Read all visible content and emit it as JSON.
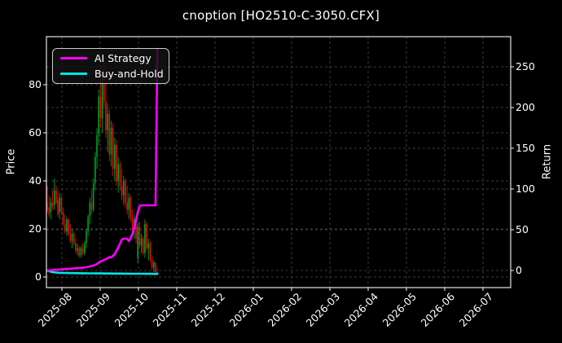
{
  "title": "cnoption [HO2510-C-3050.CFX]",
  "colors": {
    "background": "#000000",
    "foreground": "#ffffff",
    "grid": "#3a3a3a",
    "spine": "#e6e6e6",
    "candle_up": "#00a51e",
    "candle_down": "#e01212",
    "ai_line": "#ff00ff",
    "bh_line": "#00e5e5"
  },
  "legend": {
    "items": [
      {
        "label": "AI Strategy",
        "color": "#ff00ff"
      },
      {
        "label": "Buy-and-Hold",
        "color": "#00e5e5"
      }
    ]
  },
  "chart_data": {
    "type": "candlestick+line",
    "title": "cnoption [HO2510-C-3050.CFX]",
    "grid": true,
    "legend_position": "upper-left",
    "x_ticks": [
      "2025-08",
      "2025-09",
      "2025-10",
      "2025-11",
      "2025-12",
      "2026-01",
      "2026-02",
      "2026-03",
      "2026-04",
      "2026-05",
      "2026-06",
      "2026-07"
    ],
    "left_axis": {
      "label": "Price",
      "ticks": [
        0,
        20,
        40,
        60,
        80
      ],
      "range": [
        -4.5,
        100
      ]
    },
    "right_axis": {
      "label": "Return",
      "ticks": [
        0,
        50,
        100,
        150,
        200,
        250
      ],
      "range": [
        -21,
        287
      ]
    },
    "candles_ohlc": [
      [
        31,
        38,
        27,
        28
      ],
      [
        29,
        34,
        25,
        26
      ],
      [
        27,
        33,
        24,
        31
      ],
      [
        31,
        36,
        28,
        29
      ],
      [
        30,
        41,
        28,
        36
      ],
      [
        36,
        38,
        30,
        31
      ],
      [
        32,
        36,
        25,
        26
      ],
      [
        27,
        35,
        24,
        33
      ],
      [
        33,
        34,
        26,
        27
      ],
      [
        27,
        29,
        21,
        22
      ],
      [
        22,
        26,
        18,
        19
      ],
      [
        19,
        25,
        17,
        24
      ],
      [
        24,
        24,
        17,
        18
      ],
      [
        18,
        22,
        14,
        15
      ],
      [
        15,
        20,
        12,
        18
      ],
      [
        18,
        19,
        13,
        14
      ],
      [
        14,
        16,
        10,
        11
      ],
      [
        11,
        14,
        9,
        12
      ],
      [
        12,
        13,
        8,
        9
      ],
      [
        9,
        13,
        8,
        12
      ],
      [
        12,
        14,
        9,
        10
      ],
      [
        10,
        15,
        9,
        14
      ],
      [
        14,
        20,
        12,
        19
      ],
      [
        19,
        26,
        17,
        25
      ],
      [
        25,
        33,
        22,
        31
      ],
      [
        31,
        36,
        26,
        28
      ],
      [
        28,
        41,
        27,
        39
      ],
      [
        39,
        52,
        36,
        50
      ],
      [
        50,
        62,
        45,
        59
      ],
      [
        59,
        78,
        55,
        75
      ],
      [
        75,
        88,
        62,
        66
      ],
      [
        66,
        84,
        60,
        81
      ],
      [
        81,
        91,
        70,
        73
      ],
      [
        73,
        80,
        58,
        61
      ],
      [
        61,
        72,
        52,
        68
      ],
      [
        68,
        70,
        48,
        51
      ],
      [
        51,
        65,
        46,
        62
      ],
      [
        62,
        64,
        42,
        45
      ],
      [
        45,
        58,
        40,
        55
      ],
      [
        55,
        57,
        38,
        40
      ],
      [
        40,
        50,
        35,
        47
      ],
      [
        47,
        48,
        36,
        38
      ],
      [
        38,
        45,
        32,
        34
      ],
      [
        34,
        42,
        30,
        40
      ],
      [
        40,
        41,
        29,
        31
      ],
      [
        31,
        38,
        26,
        28
      ],
      [
        28,
        35,
        24,
        33
      ],
      [
        33,
        34,
        23,
        25
      ],
      [
        25,
        28,
        18,
        20
      ],
      [
        20,
        26,
        16,
        24
      ],
      [
        24,
        25,
        14,
        16
      ],
      [
        8,
        22,
        6,
        21
      ],
      [
        21,
        23,
        12,
        13
      ],
      [
        13,
        18,
        10,
        16
      ],
      [
        16,
        17,
        9,
        10
      ],
      [
        10,
        24,
        8,
        22
      ],
      [
        22,
        23,
        11,
        12
      ],
      [
        12,
        16,
        7,
        14
      ],
      [
        14,
        15,
        6,
        7
      ],
      [
        7,
        9,
        3,
        4
      ],
      [
        4,
        7,
        2,
        6
      ],
      [
        6,
        6,
        1.5,
        2
      ],
      [
        2,
        4,
        1,
        1.5
      ]
    ],
    "series": [
      {
        "name": "AI Strategy",
        "axis": "right",
        "values": [
          0,
          0,
          0.3,
          0.5,
          0.8,
          1,
          1,
          1.2,
          1.5,
          1.5,
          1.8,
          2,
          2,
          2.2,
          2.5,
          2.5,
          2.8,
          3,
          3,
          3.2,
          3.5,
          3.8,
          4,
          4.5,
          5,
          5.5,
          6,
          7,
          8,
          9.5,
          11,
          12,
          13,
          14,
          15,
          16.5,
          16,
          18,
          20,
          24,
          28,
          33,
          38,
          39,
          39,
          39,
          36,
          40,
          45,
          52,
          62,
          72,
          79,
          80,
          80,
          80,
          80,
          80,
          80,
          80,
          80,
          80,
          272
        ]
      },
      {
        "name": "Buy-and-Hold",
        "axis": "right",
        "values": [
          0,
          -0.8,
          -1.5,
          -2,
          -2.3,
          -2.5,
          -2.7,
          -2.8,
          -2.9,
          -3,
          -3,
          -3.1,
          -3.1,
          -3.2,
          -3.2,
          -3.2,
          -3.3,
          -3.3,
          -3.3,
          -3.4,
          -3.4,
          -3.4,
          -3.5,
          -3.5,
          -3.5,
          -3.5,
          -3.5,
          -3.6,
          -3.6,
          -3.6,
          -3.6,
          -3.6,
          -3.7,
          -3.7,
          -3.7,
          -3.7,
          -3.7,
          -3.8,
          -3.8,
          -3.8,
          -3.8,
          -3.8,
          -3.8,
          -3.9,
          -3.9,
          -3.9,
          -3.9,
          -3.9,
          -4,
          -4,
          -4,
          -4,
          -4,
          -4,
          -4,
          -4.1,
          -4.1,
          -4.1,
          -4.1,
          -4.1,
          -4.2,
          -4.2,
          -4.2
        ]
      }
    ]
  }
}
